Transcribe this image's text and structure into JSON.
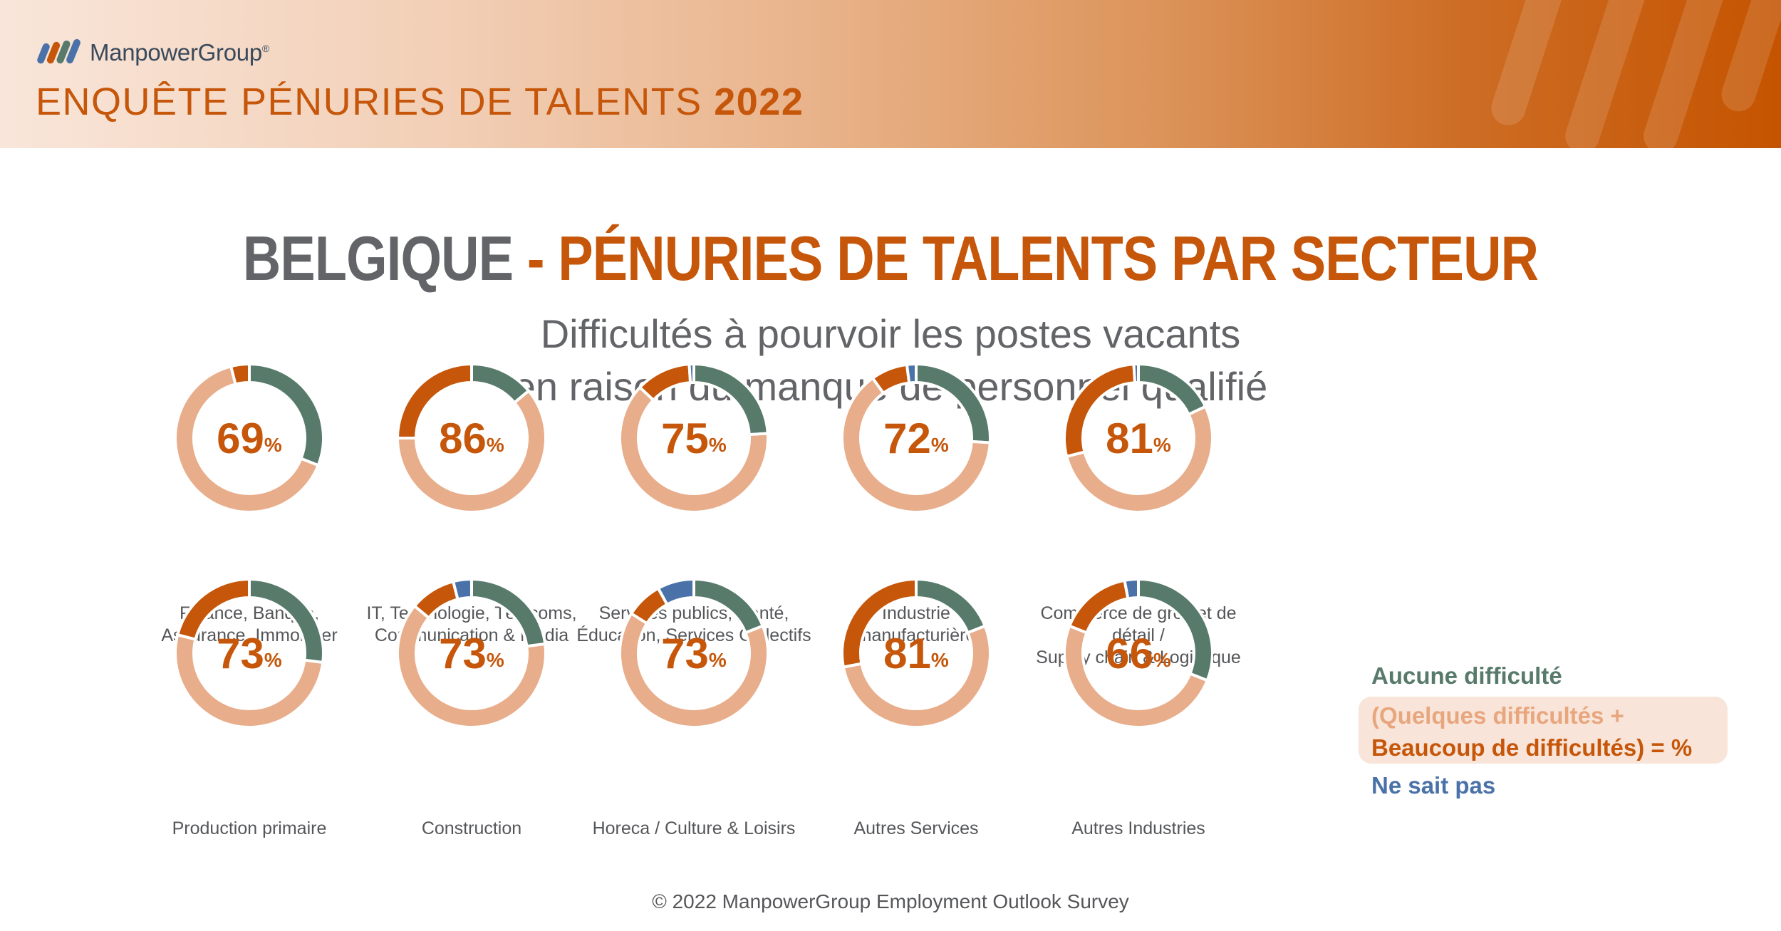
{
  "header": {
    "brand": "ManpowerGroup",
    "brand_mark": "®",
    "survey_title": "ENQUÊTE PÉNURIES DE TALENTS",
    "survey_year": "2022"
  },
  "title": {
    "country": "BELGIQUE",
    "dash": " - ",
    "topic": "PÉNURIES DE TALENTS PAR SECTEUR"
  },
  "subtitle": {
    "line1": "Difficultés à pourvoir les postes vacants",
    "line2": "en raison du manque de personnel qualifié"
  },
  "colors": {
    "aucune": "#577a6b",
    "quelques": "#e8ad8a",
    "beaucoup": "#c5560a",
    "ne_sait_pas": "#4a72a8",
    "accent": "#c5560a",
    "title_grey": "#636468"
  },
  "chart_data": {
    "type": "pie",
    "variant": "donut",
    "title": "BELGIQUE - PÉNURIES DE TALENTS PAR SECTEUR",
    "subtitle": "Difficultés à pourvoir les postes vacants en raison du manque de personnel qualifié",
    "value_unit": "%",
    "segment_order": [
      "aucune",
      "quelques",
      "beaucoup",
      "ne_sait_pas"
    ],
    "legend": {
      "aucune": "Aucune difficulté",
      "combined_line1": "(Quelques difficultés +",
      "combined_line2": "Beaucoup de difficultés) = %",
      "ne_sait_pas": "Ne sait pas",
      "placement": "right"
    },
    "sectors": [
      {
        "label_lines": [
          "Finance, Banque,",
          "Assurance, Immobilier"
        ],
        "value": 69,
        "segments": {
          "aucune": 31,
          "quelques": 65,
          "beaucoup": 4,
          "ne_sait_pas": 0
        }
      },
      {
        "label_lines": [
          "IT, Technologie, Télécoms,",
          "Communication & Média"
        ],
        "value": 86,
        "segments": {
          "aucune": 14,
          "quelques": 61,
          "beaucoup": 25,
          "ne_sait_pas": 0
        }
      },
      {
        "label_lines": [
          "Services publics, Santé,",
          "Éducation, Services Collectifs"
        ],
        "value": 75,
        "segments": {
          "aucune": 24,
          "quelques": 63,
          "beaucoup": 12,
          "ne_sait_pas": 1
        }
      },
      {
        "label_lines": [
          "Industrie",
          "manufacturière"
        ],
        "value": 72,
        "segments": {
          "aucune": 26,
          "quelques": 64,
          "beaucoup": 8,
          "ne_sait_pas": 2
        }
      },
      {
        "label_lines": [
          "Commerce de gros et de détail /",
          "Supply chain & Logistique"
        ],
        "value": 81,
        "segments": {
          "aucune": 18,
          "quelques": 53,
          "beaucoup": 28,
          "ne_sait_pas": 1
        }
      },
      {
        "label_lines": [
          "Production primaire"
        ],
        "value": 73,
        "segments": {
          "aucune": 27,
          "quelques": 52,
          "beaucoup": 21,
          "ne_sait_pas": 0
        }
      },
      {
        "label_lines": [
          "Construction"
        ],
        "value": 73,
        "segments": {
          "aucune": 23,
          "quelques": 63,
          "beaucoup": 10,
          "ne_sait_pas": 4
        }
      },
      {
        "label_lines": [
          "Horeca / Culture & Loisirs"
        ],
        "value": 73,
        "segments": {
          "aucune": 19,
          "quelques": 65,
          "beaucoup": 8,
          "ne_sait_pas": 8
        }
      },
      {
        "label_lines": [
          "Autres Services"
        ],
        "value": 81,
        "segments": {
          "aucune": 19,
          "quelques": 53,
          "beaucoup": 28,
          "ne_sait_pas": 0
        }
      },
      {
        "label_lines": [
          "Autres Industries"
        ],
        "value": 66,
        "segments": {
          "aucune": 31,
          "quelques": 50,
          "beaucoup": 16,
          "ne_sait_pas": 3
        }
      }
    ]
  },
  "footer": "© 2022 ManpowerGroup Employment Outlook Survey"
}
